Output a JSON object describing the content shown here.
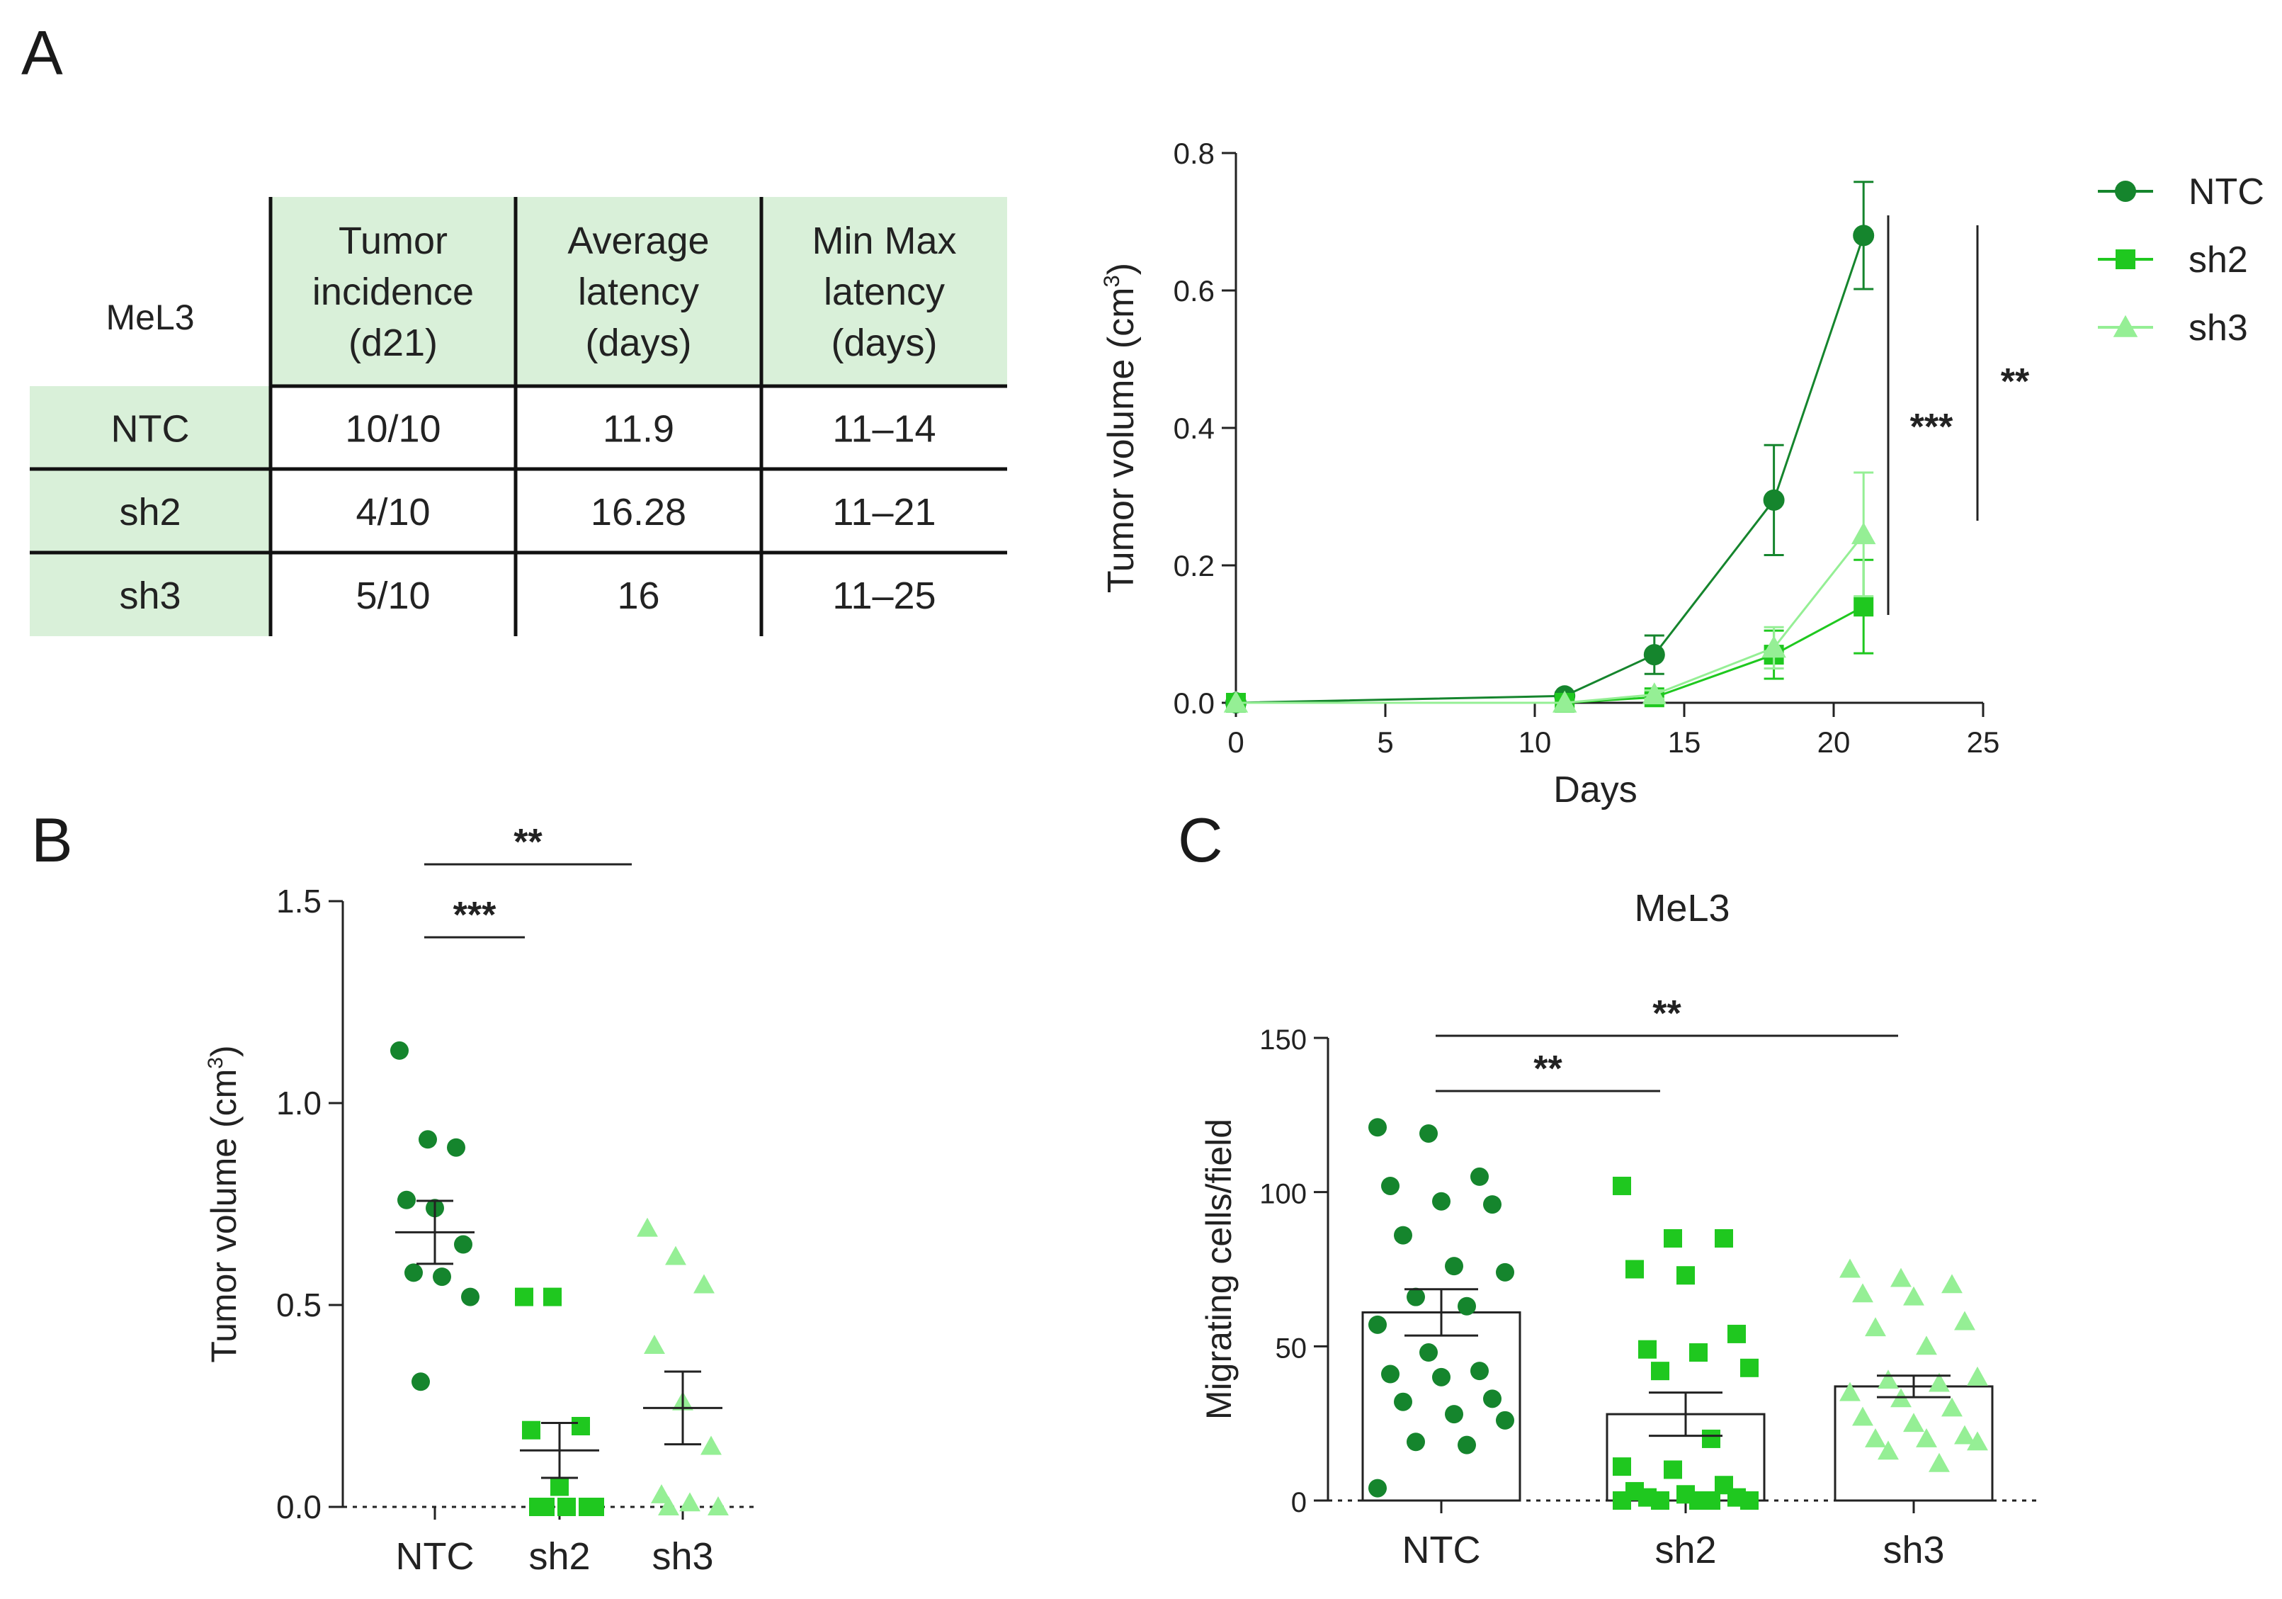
{
  "panels": {
    "a": "A",
    "b": "B",
    "c": "C"
  },
  "colors": {
    "ntc": "#15852d",
    "sh2": "#1fc81f",
    "sh3": "#95ef95",
    "header_bg": "#d9f0d9",
    "ink": "#222222"
  },
  "table": {
    "corner": "MeL3",
    "headers": [
      [
        "Tumor",
        "incidence",
        "(d21)"
      ],
      [
        "Average",
        "latency",
        "(days)"
      ],
      [
        "Min Max",
        "latency",
        "(days)"
      ]
    ],
    "rows": [
      {
        "label": "NTC",
        "cells": [
          "10/10",
          "11.9",
          "11–14"
        ]
      },
      {
        "label": "sh2",
        "cells": [
          "4/10",
          "16.28",
          "11–21"
        ]
      },
      {
        "label": "sh3",
        "cells": [
          "5/10",
          "16",
          "11–25"
        ]
      }
    ]
  },
  "chart_data": [
    {
      "id": "growth",
      "type": "line",
      "title": "",
      "xlabel": "Days",
      "ylabel": "Tumor volume (cm",
      "ylabel_sup": "3",
      "ylabel_end": ")",
      "xlim": [
        0,
        25
      ],
      "ylim": [
        0,
        0.8
      ],
      "xticks": [
        "0",
        "5",
        "10",
        "15",
        "20",
        "25"
      ],
      "yticks": [
        "0.0",
        "0.2",
        "0.4",
        "0.6",
        "0.8"
      ],
      "x": [
        0,
        11,
        14,
        18,
        21
      ],
      "series": [
        {
          "name": "NTC",
          "marker": "circle",
          "values": [
            0,
            0.01,
            0.07,
            0.295,
            0.68
          ],
          "err": [
            0,
            0.005,
            0.028,
            0.08,
            0.078
          ]
        },
        {
          "name": "sh2",
          "marker": "square",
          "values": [
            0,
            0.0,
            0.008,
            0.07,
            0.14
          ],
          "err": [
            0,
            0,
            0.006,
            0.035,
            0.068
          ]
        },
        {
          "name": "sh3",
          "marker": "triangle",
          "values": [
            0,
            0.0,
            0.012,
            0.08,
            0.245
          ],
          "err": [
            0,
            0,
            0.006,
            0.03,
            0.09
          ]
        }
      ],
      "significance": [
        "***",
        "**"
      ],
      "legend_position": "right"
    },
    {
      "id": "volume",
      "type": "scatter",
      "title": "",
      "xlabel": "",
      "ylabel": "Tumor volume (cm",
      "ylabel_sup": "3",
      "ylabel_end": ")",
      "categories": [
        "NTC",
        "sh2",
        "sh3"
      ],
      "ylim": [
        0,
        1.5
      ],
      "yticks": [
        "0.0",
        "0.5",
        "1.0",
        "1.5"
      ],
      "groups": [
        {
          "name": "NTC",
          "marker": "circle",
          "mean": 0.68,
          "sem": 0.078,
          "points": [
            1.13,
            0.91,
            0.89,
            0.76,
            0.74,
            0.65,
            0.58,
            0.57,
            0.52,
            0.31
          ]
        },
        {
          "name": "sh2",
          "marker": "square",
          "mean": 0.14,
          "sem": 0.068,
          "points": [
            0.52,
            0.52,
            0.2,
            0.19,
            0.05,
            0.0,
            0.0,
            0.0,
            0.0,
            0.0
          ]
        },
        {
          "name": "sh3",
          "marker": "triangle",
          "mean": 0.245,
          "sem": 0.09,
          "points": [
            0.69,
            0.62,
            0.55,
            0.4,
            0.26,
            0.15,
            0.03,
            0.01,
            0.0,
            0.0
          ]
        }
      ],
      "significance": [
        "***",
        "**"
      ]
    },
    {
      "id": "migration",
      "type": "bar",
      "title": "MeL3",
      "xlabel": "",
      "ylabel": "Migrating cells/field",
      "categories": [
        "NTC",
        "sh2",
        "sh3"
      ],
      "ylim": [
        0,
        150
      ],
      "yticks": [
        "0",
        "50",
        "100",
        "150"
      ],
      "groups": [
        {
          "name": "NTC",
          "marker": "circle",
          "mean": 61,
          "sem": 7.5,
          "points": [
            121,
            119,
            105,
            102,
            97,
            96,
            86,
            76,
            74,
            66,
            63,
            57,
            48,
            42,
            41,
            40,
            33,
            32,
            28,
            26,
            19,
            18,
            4
          ]
        },
        {
          "name": "sh2",
          "marker": "square",
          "mean": 28,
          "sem": 7,
          "points": [
            102,
            85,
            85,
            75,
            73,
            54,
            49,
            48,
            43,
            42,
            20,
            11,
            10,
            5,
            3,
            2,
            1,
            1,
            0,
            0,
            0,
            0,
            0
          ]
        },
        {
          "name": "sh3",
          "marker": "triangle",
          "mean": 37,
          "sem": 3.5,
          "points": [
            75,
            72,
            70,
            67,
            66,
            58,
            56,
            50,
            40,
            39,
            38,
            35,
            33,
            30,
            27,
            25,
            21,
            20,
            20,
            19,
            16,
            12
          ]
        }
      ],
      "significance": [
        "**",
        "**"
      ]
    }
  ]
}
